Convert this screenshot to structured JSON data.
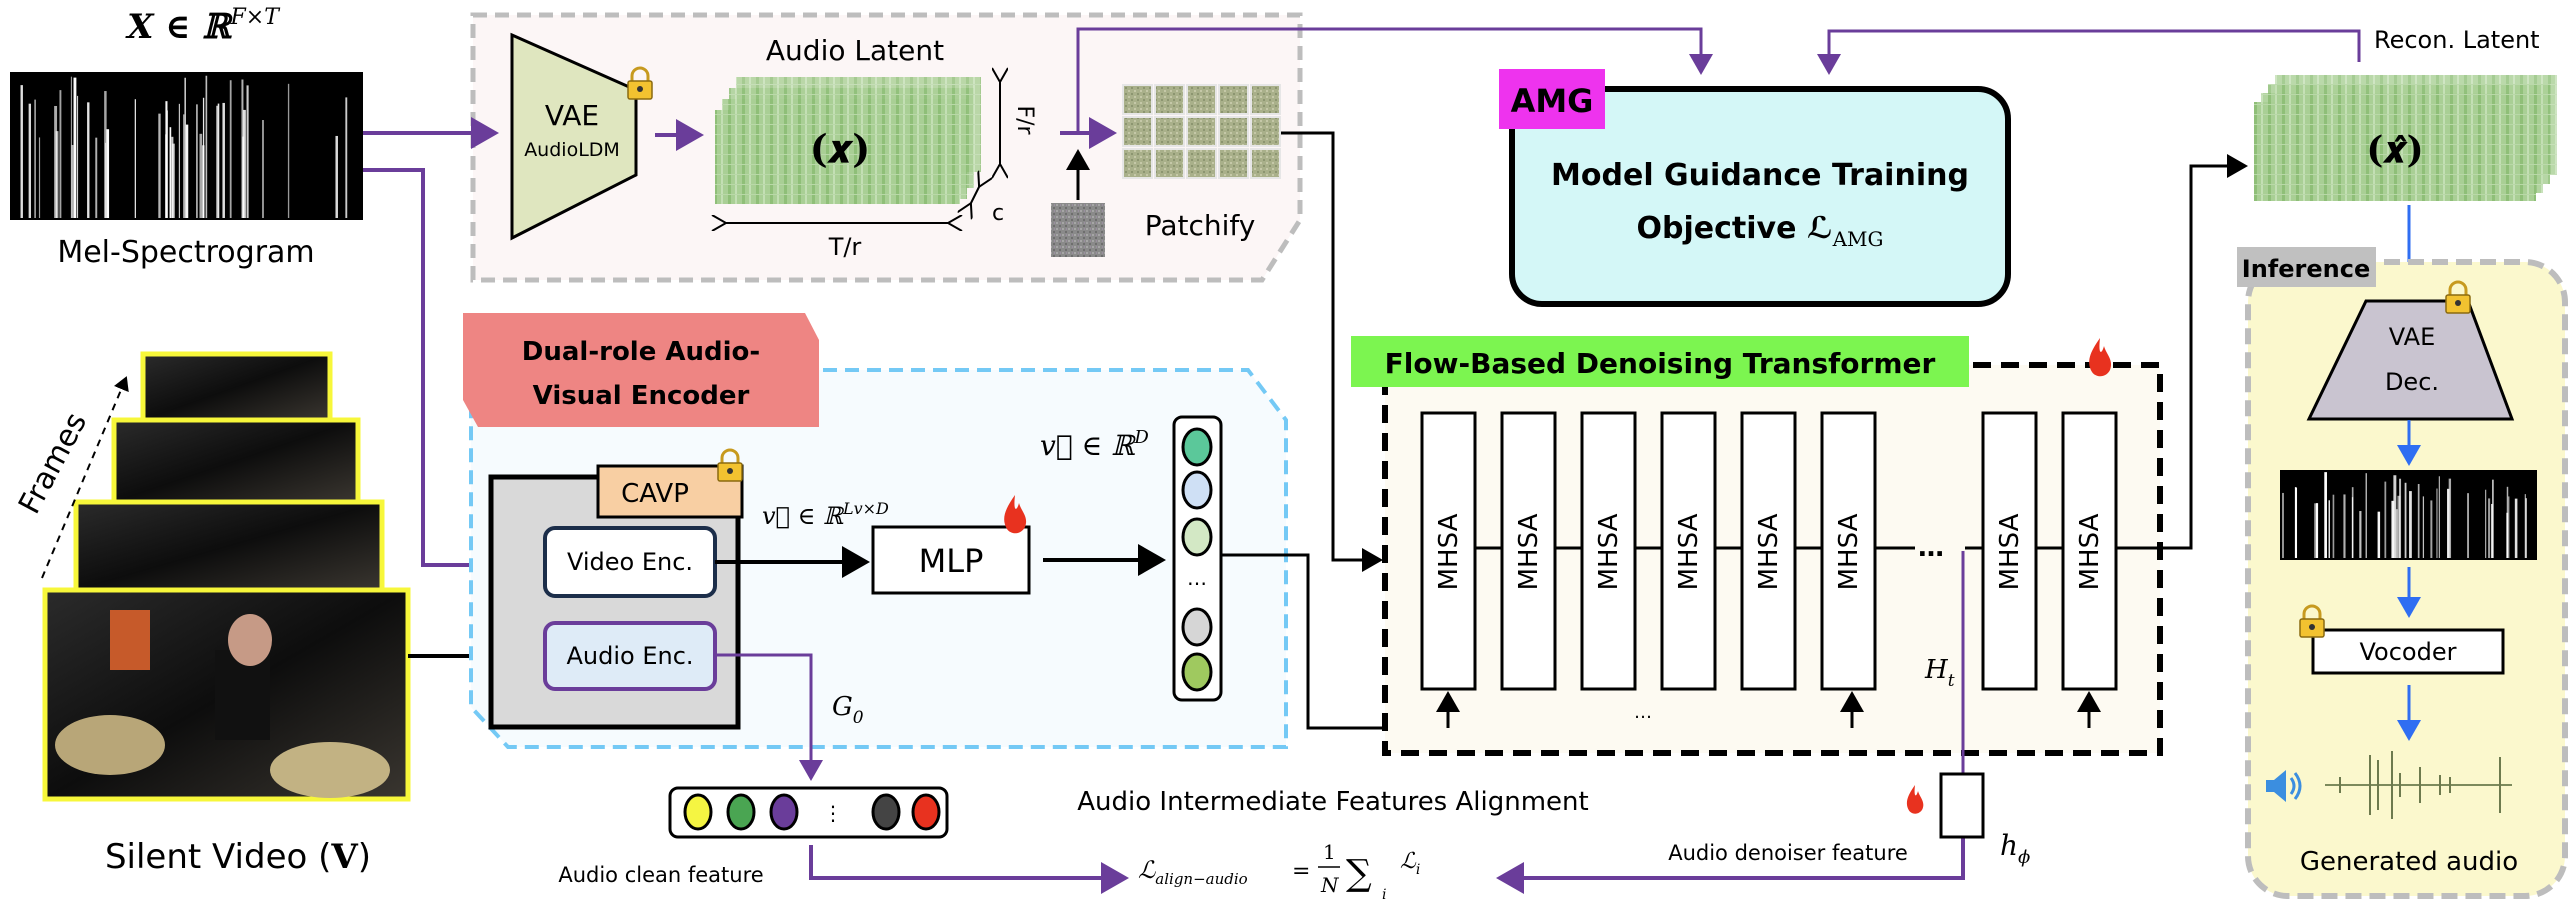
{
  "input": {
    "mel_math": "X ∈ ℝ",
    "mel_math_sup": "F×T",
    "mel_label": "Mel-Spectrogram",
    "frames_label": "Frames",
    "video_label": "Silent Video (",
    "video_label_symbol": "V",
    "video_label_close": ")"
  },
  "latent_block": {
    "vae_title": "VAE",
    "vae_sub": "AudioLDM",
    "title": "Audio Latent",
    "symbol": "(𝒙)",
    "dim_f": "F/r",
    "dim_t": "T/r",
    "dim_c": "c",
    "patchify": "Patchify"
  },
  "encoder": {
    "tag_line1": "Dual-role Audio-",
    "tag_line2": "Visual Encoder",
    "cavp": "CAVP",
    "video_enc": "Video Enc.",
    "audio_enc": "Audio Enc.",
    "v_seq": "v⃗ ∈ ℝ",
    "v_seq_sup": "Lv×D",
    "mlp": "MLP",
    "v_vec": "v⃗ ∈ ℝ",
    "v_vec_sup": "D",
    "vector_ellipsis": "…",
    "vector_colors": [
      "#5bc89a",
      "#cfe0f5",
      "#d3e8c5",
      "#d6d6d6",
      "#9fc95f"
    ],
    "g0": "G",
    "g0_sub": "0"
  },
  "alignment": {
    "clean_colors": [
      "#f5f542",
      "#4aa552",
      "#6a3d9a",
      "#444444",
      "#e8321f"
    ],
    "clean_ellipsis": "⋮",
    "clean_label": "Audio clean feature",
    "title": "Audio Intermediate Features Alignment",
    "formula_lhs": "ℒ",
    "formula_lhs_sub": "align−audio",
    "formula_eq": "=",
    "formula_num": "1",
    "formula_den": "N",
    "formula_sum": "∑",
    "formula_sum_sub": "i",
    "formula_term": "ℒ",
    "formula_term_sub": "i",
    "denoiser_label": "Audio denoiser feature",
    "h_phi": "h",
    "h_phi_sub": "ϕ"
  },
  "amg": {
    "tag": "AMG",
    "line1": "Model Guidance Training",
    "line2": "Objective ℒ",
    "line2_sub": "AMG"
  },
  "transformer": {
    "title": "Flow-Based Denoising Transformer",
    "blocks": [
      "MHSA",
      "MHSA",
      "MHSA",
      "MHSA",
      "MHSA",
      "MHSA",
      "MHSA",
      "MHSA"
    ],
    "ellipsis": "…",
    "bottom_ellipsis": "…",
    "ht": "H",
    "ht_sub": "t"
  },
  "output": {
    "recon_label": "Recon. Latent",
    "recon_symbol": "(𝒙̂)",
    "inference_tag": "Inference",
    "vae_dec_1": "VAE",
    "vae_dec_2": "Dec.",
    "vocoder": "Vocoder",
    "generated_label": "Generated audio"
  },
  "colors": {
    "purple": "#6a3d9a",
    "blue_arrow": "#2f6ef2",
    "amg_tag": "#ee33ee",
    "amg_fill": "#d4f7f7",
    "transformer_tag": "#7cf550",
    "encoder_tag": "#ee8583",
    "cavp": "#f8cfa3",
    "inference_fill": "#fbf8cd"
  }
}
